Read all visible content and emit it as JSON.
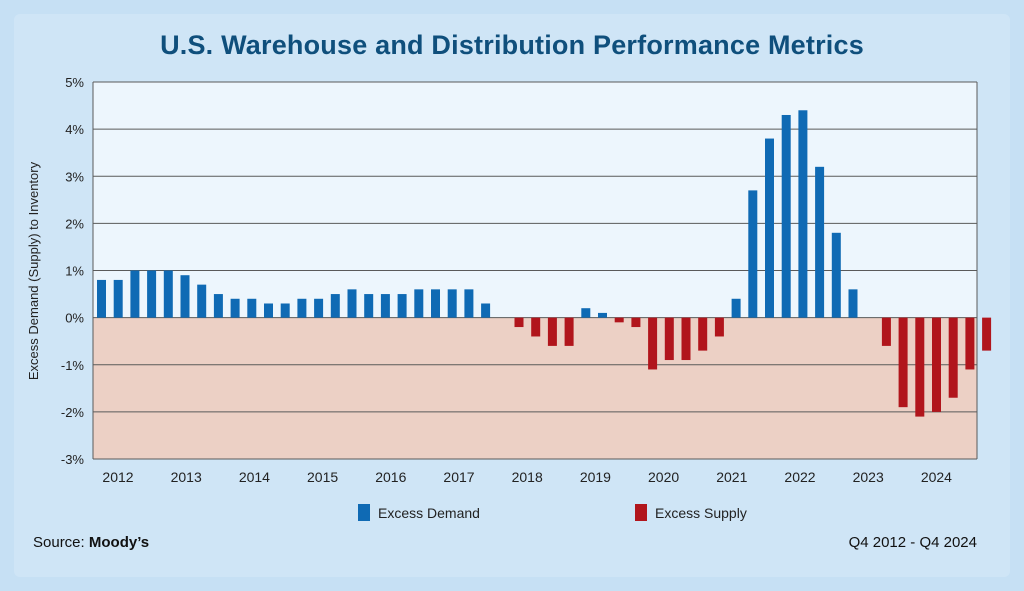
{
  "title": "U.S. Warehouse and Distribution Performance Metrics",
  "footer": {
    "source_label": "Source:",
    "source_name": "Moody’s",
    "period": "Q4 2012 - Q4 2024"
  },
  "colors": {
    "positive": "#0f6ab4",
    "negative": "#b1151c",
    "positive_bg": "#edf6fd",
    "negative_bg": "#ecd0c5",
    "grid": "#5a5a5a"
  },
  "chart_data": {
    "type": "bar",
    "title": "U.S. Warehouse and Distribution Performance Metrics",
    "ylabel": "Excess Demand (Supply) to Inventory",
    "xlabel": "",
    "ylim": [
      -3,
      5
    ],
    "y_ticks": [
      "-3%",
      "-2%",
      "-1%",
      "0%",
      "1%",
      "2%",
      "3%",
      "4%",
      "5%"
    ],
    "x_tick_labels": [
      "2012",
      "2013",
      "2014",
      "2015",
      "2016",
      "2017",
      "2018",
      "2019",
      "2020",
      "2021",
      "2022",
      "2023",
      "2024"
    ],
    "legend": [
      {
        "name": "Excess Demand",
        "color": "#0f6ab4"
      },
      {
        "name": "Excess Supply",
        "color": "#b1151c"
      }
    ],
    "grid": true,
    "values": [
      0.8,
      0.8,
      1.0,
      1.0,
      1.0,
      0.9,
      0.7,
      0.5,
      0.4,
      0.4,
      0.3,
      0.3,
      0.4,
      0.4,
      0.5,
      0.6,
      0.5,
      0.5,
      0.5,
      0.6,
      0.6,
      0.6,
      0.6,
      0.3,
      0,
      -0.2,
      -0.4,
      -0.6,
      -0.6,
      0.2,
      0.1,
      -0.1,
      -0.2,
      -1.1,
      -0.9,
      -0.9,
      -0.7,
      -0.4,
      0.4,
      2.7,
      3.8,
      4.3,
      4.4,
      3.2,
      1.8,
      0.6,
      0,
      -0.6,
      -1.9,
      -2.1,
      -2.0,
      -1.7,
      -1.1,
      -0.7
    ]
  }
}
